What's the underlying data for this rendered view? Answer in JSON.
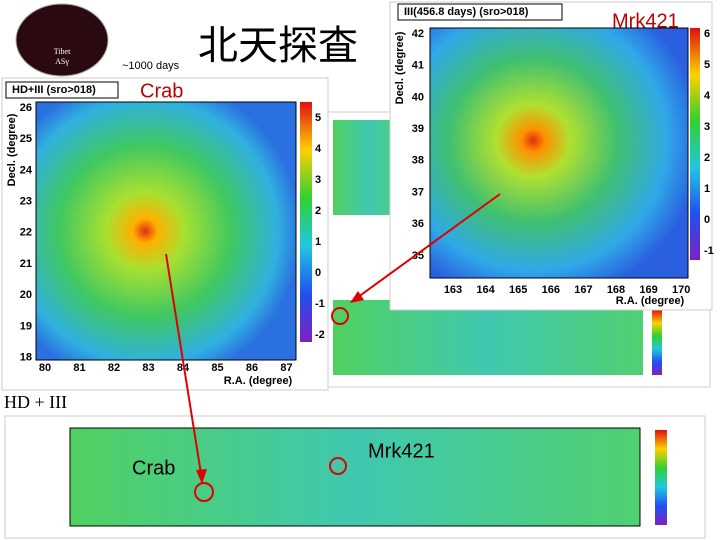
{
  "slide": {
    "title": "北天探査",
    "logo": {
      "line1": "Tibet",
      "line2": "ASγ"
    },
    "duration_note": "~1000 days",
    "section_label": "HD + III",
    "crab_panel": {
      "header": "HD+III (sro>018)",
      "source": "Crab",
      "y_axis_label": "Decl. (degree)",
      "x_axis_label": "R.A. (degree)",
      "yticks": [
        "26",
        "25",
        "24",
        "23",
        "22",
        "21",
        "20",
        "19",
        "18"
      ],
      "xticks": [
        "80",
        "81",
        "82",
        "83",
        "84",
        "85",
        "86",
        "87"
      ],
      "scale_ticks": [
        "5",
        "4",
        "3",
        "2",
        "1",
        "0",
        "-1",
        "-2"
      ]
    },
    "mrk_panel": {
      "header": "III(456.8 days) (sro>018)",
      "source": "Mrk421",
      "y_axis_label": "Decl. (degree)",
      "x_axis_label": "R.A. (degree)",
      "yticks": [
        "42",
        "41",
        "40",
        "39",
        "38",
        "37",
        "36",
        "35"
      ],
      "xticks": [
        "163",
        "164",
        "165",
        "166",
        "167",
        "168",
        "169",
        "170"
      ],
      "scale_ticks": [
        "6",
        "5",
        "4",
        "3",
        "2",
        "1",
        "0",
        "-1"
      ]
    },
    "bottom_panel": {
      "crab_label": "Crab",
      "mrk_label": "Mrk421"
    }
  }
}
